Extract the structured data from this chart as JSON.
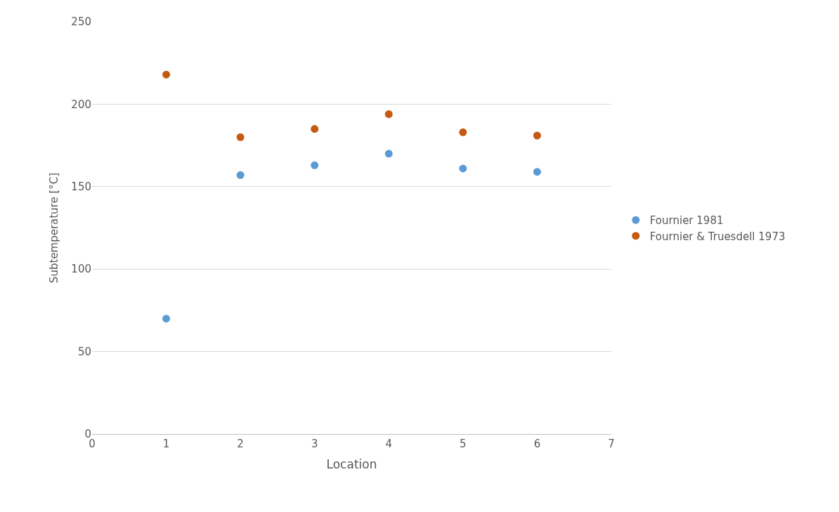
{
  "chart_data": {
    "type": "scatter",
    "xlabel": "Location",
    "ylabel": "Subtemperature [°C]",
    "x": [
      1,
      2,
      3,
      4,
      5,
      6
    ],
    "series": [
      {
        "name": "Fournier 1981",
        "color": "#5b9bd5",
        "values": [
          70,
          157,
          163,
          170,
          161,
          159
        ]
      },
      {
        "name": "Fournier & Truesdell 1973",
        "color": "#c55a11",
        "values": [
          218,
          180,
          185,
          194,
          183,
          181
        ]
      }
    ],
    "xlim": [
      0,
      7
    ],
    "xticks": [
      0,
      1,
      2,
      3,
      4,
      5,
      6,
      7
    ],
    "ylim": [
      0,
      250
    ],
    "yticks": [
      0,
      50,
      100,
      150,
      200,
      250
    ],
    "grid": "y",
    "legend": "right",
    "marker": "circle"
  }
}
